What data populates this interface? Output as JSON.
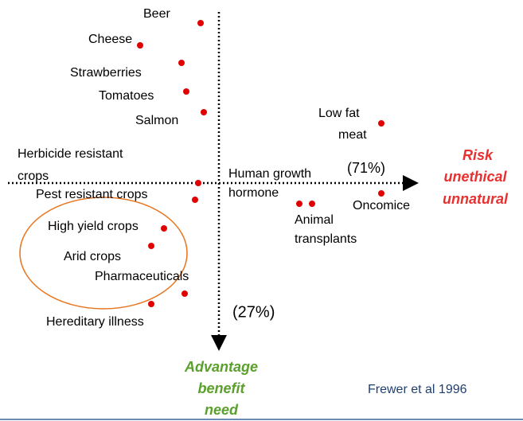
{
  "labels": {
    "beer": "Beer",
    "cheese": "Cheese",
    "strawberries": "Strawberries",
    "tomatoes": "Tomatoes",
    "salmon": "Salmon",
    "low_fat_meat": [
      "Low fat",
      "meat"
    ],
    "herbicide": [
      "Herbicide resistant",
      "crops"
    ],
    "pest": "Pest resistant crops",
    "human_growth": [
      "Human growth",
      "hormone"
    ],
    "animal": [
      "Animal",
      "transplants"
    ],
    "oncomice": "Oncomice",
    "high_yield": "High yield crops",
    "arid": "Arid crops",
    "pharma": "Pharmaceuticals",
    "hereditary": "Hereditary illness"
  },
  "percent_x": "(71%)",
  "percent_y": "(27%)",
  "x_axis_label": [
    "Risk",
    "unethical",
    "unnatural"
  ],
  "y_axis_label": [
    "Advantage",
    "benefit",
    "need"
  ],
  "source": "Frewer et al 1996"
}
